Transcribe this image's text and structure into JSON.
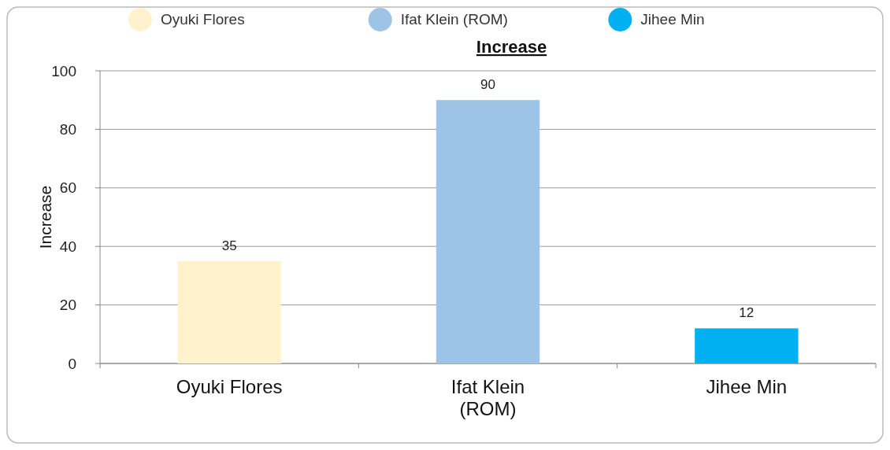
{
  "chart_data": {
    "type": "bar",
    "title": "Increase",
    "ylabel": "Increase",
    "categories": [
      "Oyuki Flores",
      "Ifat Klein (ROM)",
      "Jihee Min"
    ],
    "series": [
      {
        "name": "Oyuki Flores",
        "color": "#fff2cc",
        "values": [
          35,
          null,
          null
        ]
      },
      {
        "name": "Ifat Klein (ROM)",
        "color": "#9dc3e6",
        "values": [
          null,
          90,
          null
        ]
      },
      {
        "name": "Jihee Min",
        "color": "#00b0f0",
        "values": [
          null,
          null,
          12
        ]
      }
    ],
    "stacked": true,
    "ylim": [
      0,
      100
    ],
    "yticks": [
      0,
      20,
      40,
      60,
      80,
      100
    ],
    "grid": "y",
    "legend": "top",
    "data_labels": true
  }
}
